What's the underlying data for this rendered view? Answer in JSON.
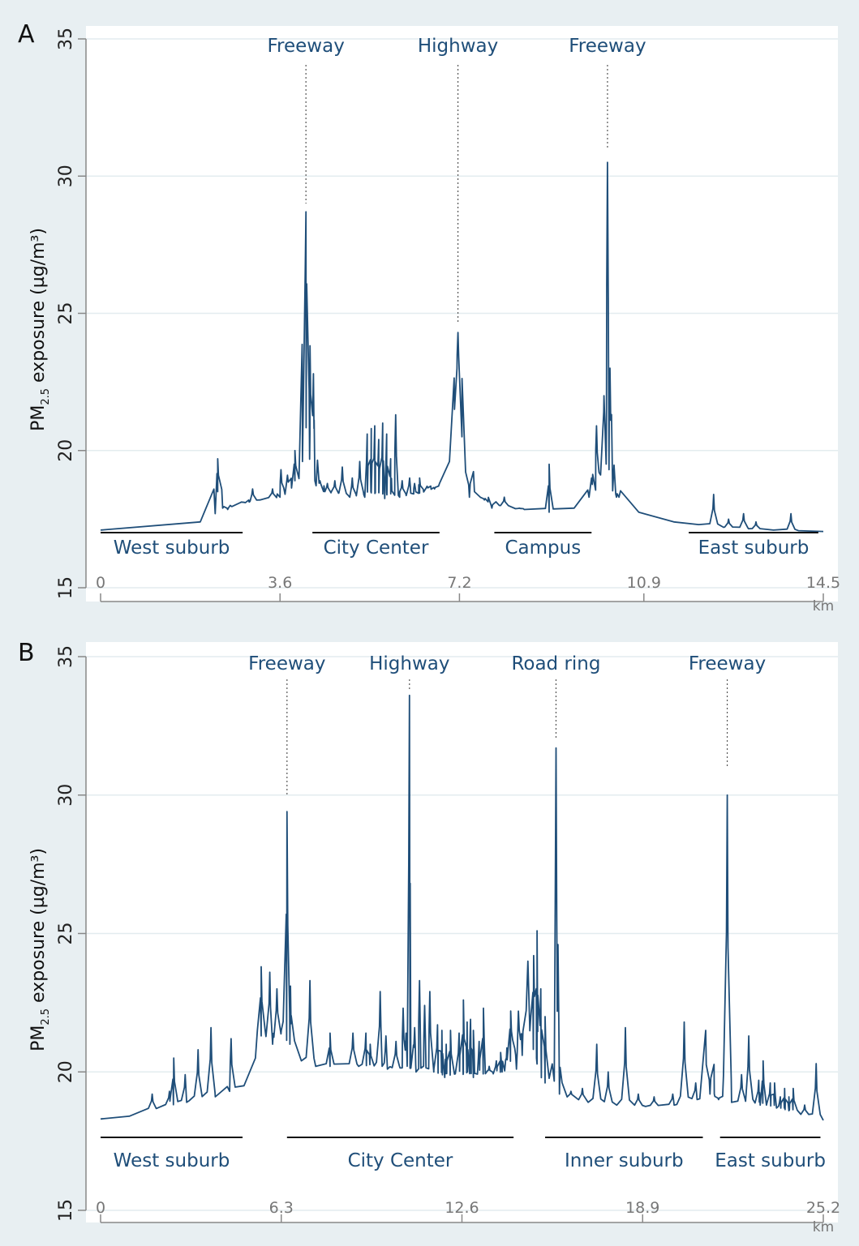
{
  "colors": {
    "background": "#e8eff2",
    "plot_area": "#ffffff",
    "line": "#1f4e79",
    "text": "#1f4e79",
    "axis": "#888888",
    "grid": "#e3ecef"
  },
  "chart_data": [
    {
      "panel_label": "A",
      "type": "line",
      "ylabel_main": "PM",
      "ylabel_sub": "2.5",
      "ylabel_rest": " exposure (µg/m³)",
      "ylim": [
        15,
        35
      ],
      "yticks": [
        15,
        20,
        25,
        30,
        35
      ],
      "xlim": [
        0,
        14.5
      ],
      "xticks": [
        "0",
        "3.6",
        "7.2",
        "10.9",
        "14.5"
      ],
      "xtick_values": [
        0,
        3.6,
        7.2,
        10.9,
        14.5
      ],
      "x_unit": "km",
      "grid": "horizontal",
      "baseline": 17.15,
      "series": [
        {
          "x": [
            0,
            2.0,
            2.3,
            2.35,
            2.45,
            2.6,
            2.8,
            3.0,
            3.2,
            3.6,
            3.9,
            4.05,
            4.13,
            4.2,
            4.3,
            4.5,
            5.0,
            5.3,
            5.7,
            6.0,
            6.4,
            6.8,
            7.0,
            7.1,
            7.15,
            7.25,
            7.5,
            8.0,
            8.5,
            9.0,
            9.5,
            9.8,
            10.0,
            10.1,
            10.15,
            10.2,
            10.4,
            10.8,
            11.5,
            12.0,
            12.5,
            13.0,
            13.5,
            14.0,
            14.5
          ],
          "y": [
            17.1,
            17.4,
            17.7,
            18.5,
            17.9,
            18.0,
            18.1,
            18.15,
            18.2,
            18.3,
            18.9,
            19.6,
            24.0,
            20.6,
            18.9,
            18.5,
            18.3,
            18.3,
            18.25,
            18.3,
            18.45,
            18.8,
            19.6,
            21.5,
            23.0,
            20.5,
            18.5,
            18.0,
            17.85,
            17.75,
            17.9,
            18.3,
            19.2,
            22.0,
            21.5,
            19.3,
            18.3,
            17.75,
            17.4,
            17.3,
            17.2,
            17.15,
            17.1,
            17.08,
            17.05
          ]
        }
      ],
      "spikes": [
        {
          "x": 2.35,
          "y": 19.7
        },
        {
          "x": 2.55,
          "y": 17.85
        },
        {
          "x": 2.9,
          "y": 18.1
        },
        {
          "x": 3.05,
          "y": 18.6
        },
        {
          "x": 3.45,
          "y": 18.6
        },
        {
          "x": 3.62,
          "y": 19.3
        },
        {
          "x": 3.75,
          "y": 19.1
        },
        {
          "x": 3.9,
          "y": 20.0
        },
        {
          "x": 4.12,
          "y": 28.7
        },
        {
          "x": 4.2,
          "y": 23.5
        },
        {
          "x": 4.27,
          "y": 22.8
        },
        {
          "x": 4.4,
          "y": 18.9
        },
        {
          "x": 4.55,
          "y": 18.8
        },
        {
          "x": 4.7,
          "y": 18.9
        },
        {
          "x": 4.85,
          "y": 19.4
        },
        {
          "x": 5.05,
          "y": 19.0
        },
        {
          "x": 5.2,
          "y": 19.6
        },
        {
          "x": 5.35,
          "y": 20.6
        },
        {
          "x": 5.43,
          "y": 20.8
        },
        {
          "x": 5.5,
          "y": 20.9
        },
        {
          "x": 5.58,
          "y": 20.4
        },
        {
          "x": 5.66,
          "y": 21.0
        },
        {
          "x": 5.74,
          "y": 20.6
        },
        {
          "x": 5.82,
          "y": 19.7
        },
        {
          "x": 5.92,
          "y": 21.3
        },
        {
          "x": 6.05,
          "y": 18.9
        },
        {
          "x": 6.2,
          "y": 19.0
        },
        {
          "x": 6.3,
          "y": 18.8
        },
        {
          "x": 6.4,
          "y": 19.0
        },
        {
          "x": 6.55,
          "y": 18.7
        },
        {
          "x": 6.7,
          "y": 18.6
        },
        {
          "x": 7.17,
          "y": 24.3
        },
        {
          "x": 7.4,
          "y": 18.3
        },
        {
          "x": 7.7,
          "y": 18.2
        },
        {
          "x": 7.85,
          "y": 17.9
        },
        {
          "x": 8.1,
          "y": 18.3
        },
        {
          "x": 8.4,
          "y": 17.9
        },
        {
          "x": 9.0,
          "y": 19.5
        },
        {
          "x": 9.85,
          "y": 19.0
        },
        {
          "x": 9.95,
          "y": 20.9
        },
        {
          "x": 10.17,
          "y": 30.5
        },
        {
          "x": 10.22,
          "y": 23.0
        },
        {
          "x": 10.35,
          "y": 18.3
        },
        {
          "x": 12.3,
          "y": 18.4
        },
        {
          "x": 12.6,
          "y": 17.5
        },
        {
          "x": 12.9,
          "y": 17.7
        },
        {
          "x": 13.15,
          "y": 17.4
        },
        {
          "x": 13.85,
          "y": 17.7
        }
      ],
      "road_markers": [
        {
          "label": "Freeway",
          "x": 4.12,
          "y_end": 29.0
        },
        {
          "label": "Highway",
          "x": 7.17,
          "y_end": 24.6
        },
        {
          "label": "Freeway",
          "x": 10.17,
          "y_end": 31.0
        }
      ],
      "zones": [
        {
          "label": "West suburb",
          "x0": 0.0,
          "x1": 2.85
        },
        {
          "label": "City Center",
          "x0": 4.25,
          "x1": 6.8
        },
        {
          "label": "Campus",
          "x0": 7.9,
          "x1": 9.85
        },
        {
          "label": "East suburb",
          "x0": 11.8,
          "x1": 14.4
        }
      ]
    },
    {
      "panel_label": "B",
      "type": "line",
      "ylabel_main": "PM",
      "ylabel_sub": "2.5",
      "ylabel_rest": " exposure (µg/m³)",
      "ylim": [
        15,
        35
      ],
      "yticks": [
        15,
        20,
        25,
        30,
        35
      ],
      "xlim": [
        0,
        25.2
      ],
      "xticks": [
        "0",
        "6.3",
        "12.6",
        "18.9",
        "25.2"
      ],
      "xtick_values": [
        0,
        6.3,
        12.6,
        18.9,
        25.2
      ],
      "x_unit": "km",
      "grid": "horizontal",
      "baseline": 18.3,
      "series": [
        {
          "x": [
            0,
            1.0,
            2.0,
            3.0,
            4.0,
            4.5,
            5.0,
            5.4,
            5.6,
            6.0,
            6.3,
            6.6,
            7.0,
            7.5,
            8.0,
            9.0,
            10.0,
            11.0,
            12.0,
            13.0,
            14.0,
            14.6,
            14.9,
            15.0,
            15.2,
            15.5,
            16.0,
            17.0,
            18.0,
            19.0,
            20.0,
            20.8,
            21.1,
            21.4,
            22.0,
            23.0,
            24.0,
            25.2
          ],
          "y": [
            18.3,
            18.4,
            18.7,
            18.9,
            19.1,
            19.3,
            19.5,
            20.5,
            21.3,
            21.0,
            21.5,
            21.0,
            20.4,
            20.2,
            20.2,
            20.2,
            20.1,
            20.0,
            19.8,
            19.8,
            20.0,
            21.5,
            24.0,
            22.0,
            20.5,
            19.6,
            19.2,
            18.9,
            18.8,
            18.75,
            18.8,
            19.0,
            21.5,
            19.2,
            18.9,
            18.8,
            18.6,
            18.25
          ]
        }
      ],
      "spikes": [
        {
          "x": 1.8,
          "y": 19.2
        },
        {
          "x": 2.4,
          "y": 19.3
        },
        {
          "x": 2.55,
          "y": 20.5
        },
        {
          "x": 2.95,
          "y": 19.9
        },
        {
          "x": 3.4,
          "y": 20.8
        },
        {
          "x": 3.85,
          "y": 21.6
        },
        {
          "x": 4.55,
          "y": 21.2
        },
        {
          "x": 5.6,
          "y": 23.8
        },
        {
          "x": 5.9,
          "y": 23.6
        },
        {
          "x": 6.15,
          "y": 23.0
        },
        {
          "x": 6.5,
          "y": 29.4
        },
        {
          "x": 6.62,
          "y": 23.1
        },
        {
          "x": 7.3,
          "y": 23.3
        },
        {
          "x": 8.0,
          "y": 21.4
        },
        {
          "x": 8.8,
          "y": 21.4
        },
        {
          "x": 9.25,
          "y": 21.4
        },
        {
          "x": 9.4,
          "y": 21.0
        },
        {
          "x": 9.75,
          "y": 22.9
        },
        {
          "x": 9.95,
          "y": 21.3
        },
        {
          "x": 10.3,
          "y": 21.1
        },
        {
          "x": 10.55,
          "y": 22.3
        },
        {
          "x": 10.65,
          "y": 21.4
        },
        {
          "x": 10.77,
          "y": 33.6
        },
        {
          "x": 10.95,
          "y": 21.6
        },
        {
          "x": 11.12,
          "y": 23.3
        },
        {
          "x": 11.3,
          "y": 22.4
        },
        {
          "x": 11.48,
          "y": 22.9
        },
        {
          "x": 11.75,
          "y": 21.7
        },
        {
          "x": 11.9,
          "y": 21.5
        },
        {
          "x": 12.05,
          "y": 21.0
        },
        {
          "x": 12.2,
          "y": 21.5
        },
        {
          "x": 12.5,
          "y": 21.4
        },
        {
          "x": 12.65,
          "y": 22.6
        },
        {
          "x": 12.78,
          "y": 21.8
        },
        {
          "x": 12.9,
          "y": 21.9
        },
        {
          "x": 13.0,
          "y": 21.5
        },
        {
          "x": 13.2,
          "y": 21.1
        },
        {
          "x": 13.35,
          "y": 22.3
        },
        {
          "x": 13.55,
          "y": 20.2
        },
        {
          "x": 13.8,
          "y": 20.4
        },
        {
          "x": 13.95,
          "y": 20.7
        },
        {
          "x": 14.15,
          "y": 20.5
        },
        {
          "x": 14.3,
          "y": 22.2
        },
        {
          "x": 14.5,
          "y": 20.1
        },
        {
          "x": 14.7,
          "y": 20.6
        },
        {
          "x": 15.1,
          "y": 24.2
        },
        {
          "x": 15.22,
          "y": 25.1
        },
        {
          "x": 15.35,
          "y": 23.0
        },
        {
          "x": 15.5,
          "y": 22.0
        },
        {
          "x": 15.88,
          "y": 31.7
        },
        {
          "x": 15.95,
          "y": 24.6
        },
        {
          "x": 16.4,
          "y": 19.3
        },
        {
          "x": 16.8,
          "y": 19.4
        },
        {
          "x": 17.3,
          "y": 21.0
        },
        {
          "x": 17.7,
          "y": 20.0
        },
        {
          "x": 18.3,
          "y": 21.6
        },
        {
          "x": 18.75,
          "y": 19.2
        },
        {
          "x": 19.3,
          "y": 19.1
        },
        {
          "x": 19.95,
          "y": 19.2
        },
        {
          "x": 20.35,
          "y": 21.8
        },
        {
          "x": 20.75,
          "y": 19.6
        },
        {
          "x": 21.25,
          "y": 19.2
        },
        {
          "x": 21.55,
          "y": 19.0
        },
        {
          "x": 21.85,
          "y": 30.0
        },
        {
          "x": 22.35,
          "y": 19.9
        },
        {
          "x": 22.6,
          "y": 21.3
        },
        {
          "x": 22.95,
          "y": 19.7
        },
        {
          "x": 23.1,
          "y": 20.4
        },
        {
          "x": 23.35,
          "y": 19.6
        },
        {
          "x": 23.5,
          "y": 19.6
        },
        {
          "x": 23.7,
          "y": 19.1
        },
        {
          "x": 23.85,
          "y": 19.4
        },
        {
          "x": 24.0,
          "y": 19.1
        },
        {
          "x": 24.15,
          "y": 19.4
        },
        {
          "x": 24.55,
          "y": 18.8
        },
        {
          "x": 24.95,
          "y": 20.3
        }
      ],
      "road_markers": [
        {
          "label": "Freeway",
          "x": 6.5,
          "y_end": 30.0
        },
        {
          "label": "Highway",
          "x": 10.77,
          "y_end": 33.8
        },
        {
          "label": "Road ring",
          "x": 15.88,
          "y_end": 32.0
        },
        {
          "label": "Freeway",
          "x": 21.85,
          "y_end": 31.0
        }
      ],
      "zones": [
        {
          "label": "West suburb",
          "x0": 0.0,
          "x1": 4.95
        },
        {
          "label": "City Center",
          "x0": 6.5,
          "x1": 14.4
        },
        {
          "label": "Inner suburb",
          "x0": 15.5,
          "x1": 21.0
        },
        {
          "label": "East suburb",
          "x0": 21.6,
          "x1": 25.1
        }
      ]
    }
  ]
}
